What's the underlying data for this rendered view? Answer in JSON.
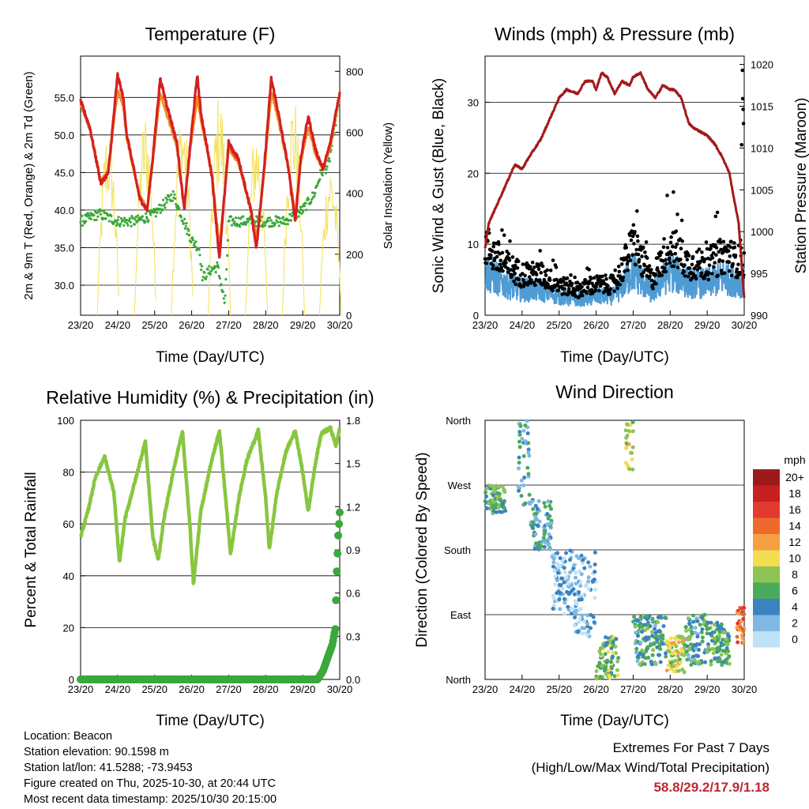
{
  "colors": {
    "temp_2m": "#d42020",
    "temp_9m": "#f58b20",
    "dewpoint": "#3aa83a",
    "insolation": "#f2e15a",
    "gust": "#000000",
    "wind": "#4f9bd4",
    "pressure": "#a31a1a",
    "rh": "#88c640",
    "precip": "#3aa83a",
    "extremes_value": "#c0272d"
  },
  "chart_data": [
    {
      "id": "temperature",
      "type": "line",
      "title": "Temperature (F)",
      "xlabel": "Time (Day/UTC)",
      "ylabel": "2m & 9m T (Red, Orange) & 2m Td (Green)",
      "y2label": "Solar Insolation (Yellow)",
      "x_ticks": [
        "23/20",
        "24/20",
        "25/20",
        "26/20",
        "27/20",
        "28/20",
        "29/20",
        "30/20"
      ],
      "x_range_days": [
        0,
        7
      ],
      "ylim": [
        26,
        60.5
      ],
      "y_ticks": [
        "30.0",
        "35.0",
        "40.0",
        "45.0",
        "50.0",
        "55.0"
      ],
      "y2lim": [
        0,
        850
      ],
      "y2_ticks": [
        "0",
        "200",
        "400",
        "600",
        "800"
      ],
      "grid": "horizontal",
      "series": [
        {
          "name": "2m T",
          "x": [
            0,
            0.25,
            0.55,
            0.75,
            1.0,
            1.15,
            1.25,
            1.6,
            1.8,
            1.95,
            2.15,
            2.25,
            2.6,
            2.8,
            2.95,
            3.15,
            3.25,
            3.55,
            3.75,
            4.0,
            4.1,
            4.25,
            4.6,
            4.75,
            4.95,
            5.15,
            5.3,
            5.6,
            5.8,
            5.95,
            6.15,
            6.35,
            6.55,
            6.75,
            6.95,
            7.0
          ],
          "values": [
            54.5,
            51,
            43.5,
            45,
            58,
            55,
            50,
            41.5,
            40,
            47,
            57.5,
            55.5,
            49,
            40,
            48,
            58,
            53,
            44.5,
            33.5,
            49,
            48,
            47,
            40,
            35,
            45,
            57.5,
            54,
            46,
            38.5,
            47,
            52.5,
            48,
            45.5,
            49,
            54.5,
            55.5
          ]
        },
        {
          "name": "9m T",
          "x": [
            0,
            0.25,
            0.55,
            0.75,
            1.0,
            1.15,
            1.25,
            1.6,
            1.8,
            1.95,
            2.15,
            2.25,
            2.6,
            2.8,
            2.95,
            3.15,
            3.25,
            3.55,
            3.75,
            4.0,
            4.1,
            4.25,
            4.6,
            4.75,
            4.95,
            5.15,
            5.3,
            5.6,
            5.8,
            5.95,
            6.15,
            6.35,
            6.55,
            6.75,
            6.95,
            7.0
          ],
          "values": [
            54,
            50.8,
            43.8,
            45.2,
            56,
            54,
            49.5,
            41.8,
            40.3,
            46.5,
            55.5,
            54,
            48.5,
            40.5,
            47.5,
            55,
            52,
            44.8,
            35,
            48,
            47.5,
            46.5,
            40.3,
            36,
            44.5,
            55.5,
            53,
            46,
            39.5,
            46.5,
            51,
            47.5,
            45.5,
            48.5,
            54,
            55
          ]
        },
        {
          "name": "2m Td",
          "x": [
            0,
            0.5,
            1.0,
            1.5,
            2.0,
            2.5,
            3.0,
            3.2,
            3.3,
            3.5,
            3.7,
            3.9,
            4.0,
            4.5,
            5.0,
            5.5,
            6.0,
            6.3,
            6.5,
            6.7,
            6.9,
            7.0
          ],
          "values": [
            38.5,
            39.5,
            38.5,
            38.5,
            39.5,
            42,
            36,
            35,
            31,
            32,
            32.5,
            27.5,
            38.5,
            38.5,
            38.5,
            38.5,
            40,
            42,
            45,
            46,
            52,
            55
          ]
        },
        {
          "name": "Solar Insolation",
          "axis": "right",
          "peak_x": [
            0.75,
            1.75,
            2.75,
            3.75,
            4.75,
            5.75,
            6.75
          ],
          "peak_values": [
            640,
            680,
            700,
            740,
            640,
            740,
            520
          ]
        }
      ]
    },
    {
      "id": "winds_pressure",
      "type": "scatter",
      "title": "Winds (mph) & Pressure (mb)",
      "xlabel": "Time (Day/UTC)",
      "ylabel": "Sonic Wind & Gust (Blue, Black)",
      "y2label": "Station Pressure (Maroon)",
      "x_ticks": [
        "23/20",
        "24/20",
        "25/20",
        "26/20",
        "27/20",
        "28/20",
        "29/20",
        "30/20"
      ],
      "ylim": [
        0,
        36.5
      ],
      "y_ticks": [
        "0",
        "10",
        "20",
        "30"
      ],
      "y2lim": [
        990,
        1021
      ],
      "y2_ticks": [
        "990",
        "995",
        "1000",
        "1005",
        "1010",
        "1015",
        "1020"
      ],
      "grid": "horizontal",
      "series": [
        {
          "name": "Pressure",
          "axis": "right",
          "x": [
            0,
            0.1,
            0.3,
            0.6,
            0.8,
            1.0,
            1.2,
            1.5,
            1.8,
            2.0,
            2.2,
            2.5,
            2.7,
            2.9,
            3.0,
            3.15,
            3.3,
            3.5,
            3.7,
            3.9,
            4.0,
            4.2,
            4.4,
            4.6,
            4.8,
            5.0,
            5.1,
            5.3,
            5.5,
            5.6,
            5.8,
            6.0,
            6.2,
            6.4,
            6.5,
            6.6,
            6.7,
            6.85,
            6.95,
            7.0
          ],
          "values": [
            998,
            1001,
            1003,
            1006,
            1008,
            1007.5,
            1009,
            1011,
            1014,
            1016,
            1017,
            1016.5,
            1018,
            1018,
            1017,
            1019,
            1018.5,
            1016.5,
            1018,
            1017.5,
            1018.5,
            1019,
            1017,
            1016,
            1017.5,
            1017,
            1017,
            1016,
            1013,
            1012.5,
            1012,
            1011.5,
            1010.5,
            1009,
            1008,
            1007,
            1004.5,
            1001,
            995,
            992
          ]
        },
        {
          "name": "Sonic Wind",
          "baseline_x": [
            0,
            0.5,
            1.0,
            1.5,
            2.0,
            2.5,
            3.0,
            3.5,
            4.0,
            4.5,
            5.0,
            5.5,
            6.0,
            6.5,
            7.0
          ],
          "baseline_values": [
            7,
            5,
            4,
            4,
            3,
            2.5,
            3,
            3,
            7,
            3.5,
            7,
            5,
            5,
            6,
            5
          ]
        },
        {
          "name": "Gust",
          "max_value": 34.5
        }
      ]
    },
    {
      "id": "rh_precip",
      "type": "line",
      "title": "Relative Humidity (%) & Precipitation (in)",
      "xlabel": "Time (Day/UTC)",
      "ylabel": "Percent & Total Rainfall",
      "x_ticks": [
        "23/20",
        "24/20",
        "25/20",
        "26/20",
        "27/20",
        "28/20",
        "29/20",
        "30/20"
      ],
      "ylim": [
        0,
        100
      ],
      "y_ticks": [
        "0",
        "20",
        "40",
        "60",
        "80",
        "100"
      ],
      "y2lim": [
        0,
        1.8
      ],
      "y2_ticks": [
        "0.0",
        "0.3",
        "0.6",
        "0.9",
        "1.2",
        "1.5",
        "1.8"
      ],
      "grid": "horizontal",
      "series": [
        {
          "name": "Relative Humidity",
          "x": [
            0,
            0.2,
            0.4,
            0.65,
            0.9,
            1.05,
            1.2,
            1.5,
            1.75,
            1.95,
            2.1,
            2.25,
            2.5,
            2.75,
            2.95,
            3.05,
            3.25,
            3.5,
            3.75,
            3.95,
            4.05,
            4.3,
            4.5,
            4.8,
            5.0,
            5.1,
            5.3,
            5.55,
            5.8,
            6.0,
            6.15,
            6.35,
            6.5,
            6.75,
            6.9,
            7.0
          ],
          "values": [
            55,
            65,
            78,
            86,
            72,
            45,
            62,
            78,
            92,
            55,
            46,
            62,
            80,
            96,
            60,
            37,
            65,
            82,
            96,
            65,
            48,
            72,
            85,
            96,
            70,
            50,
            72,
            88,
            96,
            80,
            65,
            84,
            95,
            97,
            90,
            97
          ]
        },
        {
          "name": "Total Precipitation",
          "axis": "right",
          "x": [
            0,
            6.4,
            6.55,
            6.7,
            6.8,
            6.88,
            6.92,
            6.96,
            7.0
          ],
          "values": [
            0,
            0,
            0.06,
            0.17,
            0.24,
            0.35,
            0.75,
            1.0,
            1.16
          ]
        }
      ]
    },
    {
      "id": "wind_direction",
      "type": "scatter",
      "title": "Wind Direction",
      "xlabel": "Time (Day/UTC)",
      "ylabel": "Direction (Colored By Speed)",
      "x_ticks": [
        "23/20",
        "24/20",
        "25/20",
        "26/20",
        "27/20",
        "28/20",
        "29/20",
        "30/20"
      ],
      "y_ticks": [
        "North",
        "East",
        "South",
        "West",
        "North"
      ],
      "ylim": [
        0,
        360
      ],
      "legend": {
        "title": "mph",
        "labels": [
          "20+",
          "18",
          "16",
          "14",
          "12",
          "10",
          "8",
          "6",
          "4",
          "2",
          "0"
        ],
        "colors": [
          "#9e1a1a",
          "#c72020",
          "#e23a2c",
          "#ee6a2c",
          "#f5a043",
          "#f2dc52",
          "#8dc455",
          "#4aaa5c",
          "#3b82c0",
          "#7eb8e3",
          "#bfe2f6"
        ]
      },
      "clusters": [
        {
          "x_range": [
            0,
            0.55
          ],
          "dir": [
            230,
            270
          ],
          "speed": 6
        },
        {
          "x_range": [
            0.9,
            1.2
          ],
          "dir": [
            240,
            360
          ],
          "speed": 4
        },
        {
          "x_range": [
            1.2,
            1.8
          ],
          "dir": [
            180,
            250
          ],
          "speed": 4
        },
        {
          "x_range": [
            1.8,
            2.4
          ],
          "dir": [
            90,
            180
          ],
          "speed": 2
        },
        {
          "x_range": [
            2.4,
            3.0
          ],
          "dir": [
            60,
            180
          ],
          "speed": 2
        },
        {
          "x_range": [
            3.0,
            3.6
          ],
          "dir": [
            0,
            60
          ],
          "speed": 7
        },
        {
          "x_range": [
            3.8,
            4.0
          ],
          "dir": [
            290,
            360
          ],
          "speed": 9
        },
        {
          "x_range": [
            4.0,
            4.9
          ],
          "dir": [
            20,
            90
          ],
          "speed": 5
        },
        {
          "x_range": [
            4.9,
            5.4
          ],
          "dir": [
            10,
            60
          ],
          "speed": 9
        },
        {
          "x_range": [
            5.4,
            6.0
          ],
          "dir": [
            20,
            90
          ],
          "speed": 5
        },
        {
          "x_range": [
            6.0,
            6.6
          ],
          "dir": [
            20,
            80
          ],
          "speed": 6
        },
        {
          "x_range": [
            6.8,
            7.0
          ],
          "dir": [
            50,
            100
          ],
          "speed": 14
        }
      ]
    }
  ],
  "panels": {
    "temperature": {
      "title": "Temperature (F)",
      "xlabel": "Time (Day/UTC)",
      "ylabel": "2m & 9m T (Red, Orange) & 2m Td (Green)",
      "y2label": "Solar Insolation (Yellow)"
    },
    "winds": {
      "title": "Winds (mph) & Pressure (mb)",
      "xlabel": "Time (Day/UTC)",
      "ylabel": "Sonic Wind & Gust (Blue, Black)",
      "y2label": "Station Pressure (Maroon)"
    },
    "rh": {
      "title": "Relative Humidity (%) & Precipitation (in)",
      "xlabel": "Time (Day/UTC)",
      "ylabel": "Percent & Total Rainfall"
    },
    "wdir": {
      "title": "Wind Direction",
      "xlabel": "Time (Day/UTC)",
      "ylabel": "Direction (Colored By Speed)",
      "legend_title": "mph"
    }
  },
  "footer": {
    "location": "Location: Beacon",
    "elevation": "Station elevation: 90.1598 m",
    "latlon": "Station lat/lon: 41.5288; -73.9453",
    "created": "Figure created on Thu, 2025-10-30, at 20:44 UTC",
    "recent": "Most recent data timestamp: 2025/10/30 20:15:00"
  },
  "extremes": {
    "title": "Extremes For Past 7 Days",
    "subtitle": "(High/Low/Max Wind/Total Precipitation)",
    "values": "58.8/29.2/17.9/1.18"
  }
}
